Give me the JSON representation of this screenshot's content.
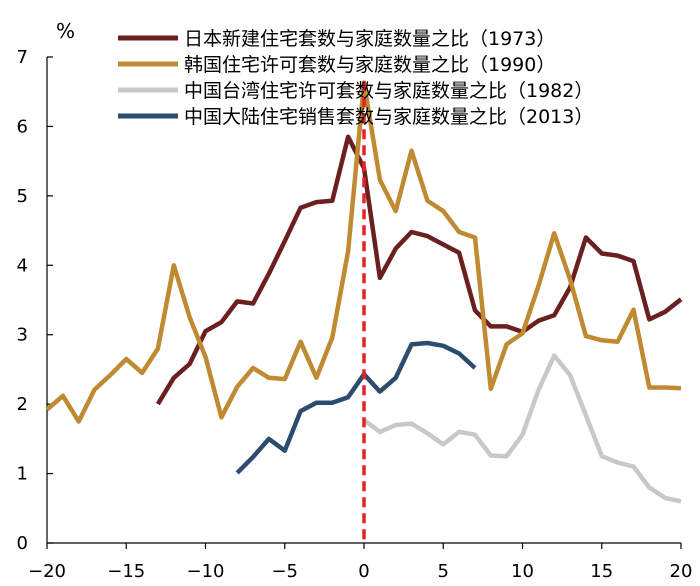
{
  "chart_data": {
    "type": "line",
    "ylabel": "%",
    "xlim": [
      -20,
      20
    ],
    "ylim": [
      0,
      7
    ],
    "x_ticks": [
      -20,
      -15,
      -10,
      -5,
      0,
      5,
      10,
      15,
      20
    ],
    "y_ticks": [
      0,
      1,
      2,
      3,
      4,
      5,
      6,
      7
    ],
    "grid": false,
    "legend_position": "top",
    "reference_line": {
      "x": 0,
      "color": "#e8202a",
      "style": "dashed"
    },
    "series": [
      {
        "name": "日本新建住宅套数与家庭数量之比（1973）",
        "color": "#6b1f1f",
        "x": [
          -13,
          -12,
          -11,
          -10,
          -9,
          -8,
          -7,
          -6,
          -5,
          -4,
          -3,
          -2,
          -1,
          0,
          1,
          2,
          3,
          4,
          5,
          6,
          7,
          8,
          9,
          10,
          11,
          12,
          13,
          14,
          15,
          16,
          17,
          18,
          19,
          20
        ],
        "y": [
          2.0,
          2.38,
          2.58,
          3.05,
          3.18,
          3.48,
          3.45,
          3.88,
          4.35,
          4.83,
          4.91,
          4.93,
          5.85,
          5.4,
          3.82,
          4.24,
          4.48,
          4.42,
          4.3,
          4.18,
          3.35,
          3.12,
          3.12,
          3.04,
          3.2,
          3.28,
          3.68,
          4.4,
          4.17,
          4.14,
          4.06,
          3.22,
          3.33,
          3.51
        ]
      },
      {
        "name": "韩国住宅许可套数与家庭数量之比（1990）",
        "color": "#c08a33",
        "x": [
          -20,
          -19,
          -18,
          -17,
          -16,
          -15,
          -14,
          -13,
          -12,
          -11,
          -10,
          -9,
          -8,
          -7,
          -6,
          -5,
          -4,
          -3,
          -2,
          -1,
          0,
          1,
          2,
          3,
          4,
          5,
          6,
          7,
          8,
          9,
          10,
          11,
          12,
          13,
          14,
          15,
          16,
          17,
          18,
          19,
          20
        ],
        "y": [
          1.92,
          2.12,
          1.75,
          2.21,
          2.42,
          2.65,
          2.45,
          2.8,
          4.0,
          3.25,
          2.68,
          1.81,
          2.25,
          2.52,
          2.38,
          2.36,
          2.9,
          2.38,
          2.96,
          4.2,
          6.63,
          5.23,
          4.78,
          5.65,
          4.93,
          4.78,
          4.48,
          4.4,
          2.22,
          2.86,
          3.02,
          3.7,
          4.46,
          3.8,
          2.98,
          2.92,
          2.9,
          3.36,
          2.24,
          2.24,
          2.23
        ]
      },
      {
        "name": "中国台湾住宅许可套数与家庭数量之比（1982）",
        "color": "#c8c8c8",
        "x": [
          0,
          1,
          2,
          3,
          4,
          5,
          6,
          7,
          8,
          9,
          10,
          11,
          12,
          13,
          14,
          15,
          16,
          17,
          18,
          19,
          20
        ],
        "y": [
          1.77,
          1.6,
          1.7,
          1.72,
          1.58,
          1.42,
          1.6,
          1.56,
          1.26,
          1.25,
          1.56,
          2.2,
          2.7,
          2.42,
          1.84,
          1.25,
          1.16,
          1.1,
          0.8,
          0.65,
          0.6
        ]
      },
      {
        "name": "中国大陆住宅销售套数与家庭数量之比（2013）",
        "color": "#2b4c6f",
        "x": [
          -8,
          -7,
          -6,
          -5,
          -4,
          -3,
          -2,
          -1,
          0,
          1,
          2,
          3,
          4,
          5,
          6,
          7
        ],
        "y": [
          1.01,
          1.24,
          1.5,
          1.33,
          1.9,
          2.02,
          2.02,
          2.1,
          2.43,
          2.18,
          2.38,
          2.86,
          2.88,
          2.84,
          2.73,
          2.52
        ]
      }
    ]
  }
}
